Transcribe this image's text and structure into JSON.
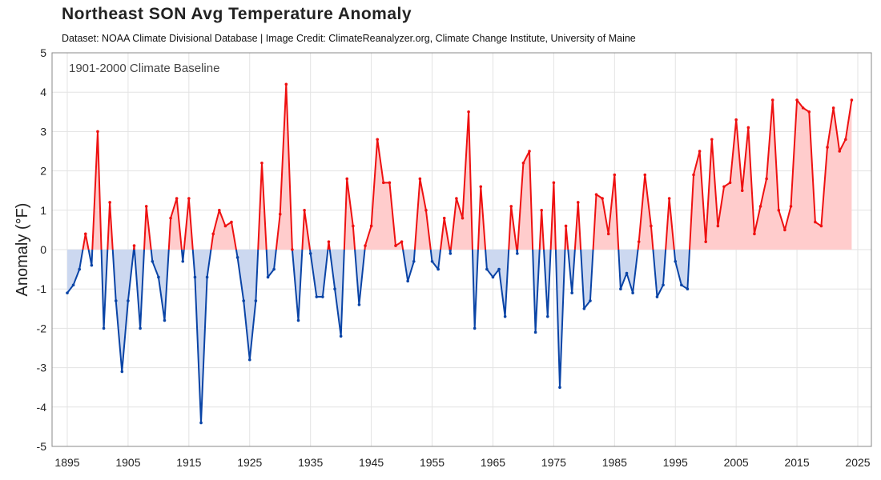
{
  "chart_data": {
    "type": "area",
    "title": "Northeast SON Avg Temperature Anomaly",
    "subtitle": "Dataset: NOAA Climate Divisional Database | Image Credit: ClimateReanalyzer.org, Climate Change Institute, University of Maine",
    "annotation": "1901-2000 Climate Baseline",
    "xlabel": "",
    "ylabel": "Anomaly (°F)",
    "xlim": [
      1893,
      2028
    ],
    "ylim": [
      -5,
      5
    ],
    "grid": true,
    "xticks": [
      1895,
      1905,
      1915,
      1925,
      1935,
      1945,
      1955,
      1965,
      1975,
      1985,
      1995,
      2005,
      2015,
      2025
    ],
    "yticks": [
      -5,
      -4,
      -3,
      -2,
      -1,
      0,
      1,
      2,
      3,
      4,
      5
    ],
    "colors": {
      "positive_line": "#ee1111",
      "positive_fill": "#ffcccc",
      "negative_line": "#0a44a6",
      "negative_fill": "#ccd8f0"
    },
    "start_year": 1895,
    "values": [
      -1.1,
      -0.9,
      -0.5,
      0.4,
      -0.4,
      3.0,
      -2.0,
      1.2,
      -1.3,
      -3.1,
      -1.3,
      0.1,
      -2.0,
      1.1,
      -0.3,
      -0.7,
      -1.8,
      0.8,
      1.3,
      -0.3,
      1.3,
      -0.7,
      -4.4,
      -0.7,
      0.4,
      1.0,
      0.6,
      0.7,
      -0.2,
      -1.3,
      -2.8,
      -1.3,
      2.2,
      -0.7,
      -0.5,
      0.9,
      4.2,
      0.0,
      -1.8,
      1.0,
      -0.1,
      -1.2,
      -1.2,
      0.2,
      -1.0,
      -2.2,
      1.8,
      0.6,
      -1.4,
      0.1,
      0.6,
      2.8,
      1.7,
      1.7,
      0.1,
      0.2,
      -0.8,
      -0.3,
      1.8,
      1.0,
      -0.3,
      -0.5,
      0.8,
      -0.1,
      1.3,
      0.8,
      3.5,
      -2.0,
      1.6,
      -0.5,
      -0.7,
      -0.5,
      -1.7,
      1.1,
      -0.1,
      2.2,
      2.5,
      -2.1,
      1.0,
      -1.7,
      1.7,
      -3.5,
      0.6,
      -1.1,
      1.2,
      -1.5,
      -1.3,
      1.4,
      1.3,
      0.4,
      1.9,
      -1.0,
      -0.6,
      -1.1,
      0.2,
      1.9,
      0.6,
      -1.2,
      -0.9,
      1.3,
      -0.3,
      -0.9,
      -1.0,
      1.9,
      2.5,
      0.2,
      2.8,
      0.6,
      1.6,
      1.7,
      3.3,
      1.5,
      3.1,
      0.4,
      1.1,
      1.8,
      3.8,
      1.0,
      0.5,
      1.1,
      3.8,
      3.6,
      3.5,
      0.7,
      0.6,
      2.6,
      3.6,
      2.5,
      2.8,
      3.8
    ]
  }
}
